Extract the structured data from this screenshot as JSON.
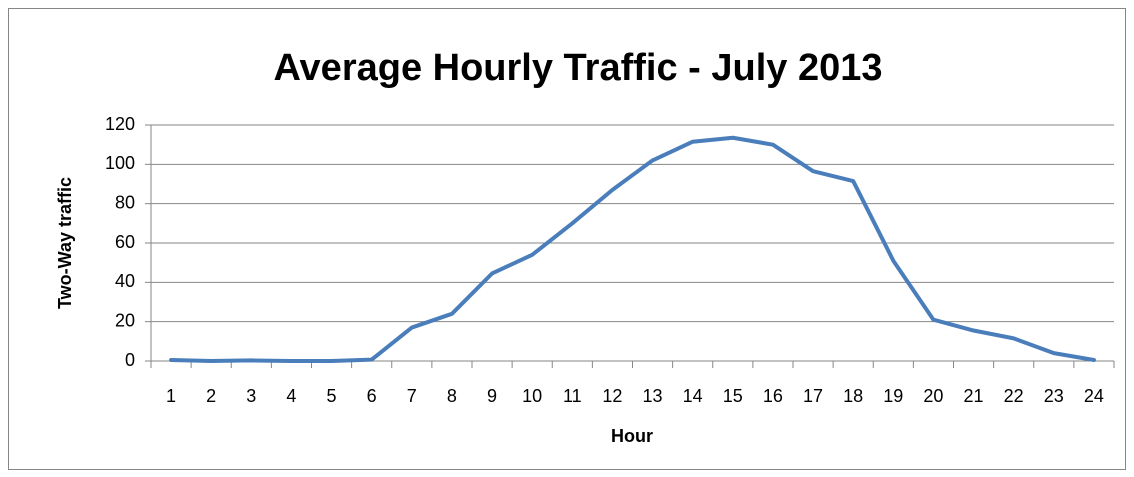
{
  "chart_data": {
    "type": "line",
    "title": "Average Hourly Traffic - July 2013",
    "x_label": "Hour",
    "y_label": "Two-Way traffic",
    "categories": [
      "1",
      "2",
      "3",
      "4",
      "5",
      "6",
      "7",
      "8",
      "9",
      "10",
      "11",
      "12",
      "13",
      "14",
      "15",
      "16",
      "17",
      "18",
      "19",
      "20",
      "21",
      "22",
      "23",
      "24"
    ],
    "series": [
      {
        "name": "Two-Way traffic",
        "color": "#4a7ebb",
        "values": [
          0.5,
          0,
          0.3,
          0,
          0,
          0.7,
          17,
          24,
          44.5,
          54,
          70,
          87,
          102,
          111.5,
          113.5,
          110,
          96.5,
          91.5,
          51,
          21,
          15.5,
          11.5,
          4,
          0.5
        ]
      }
    ],
    "ylim": [
      0,
      120
    ],
    "yticks": [
      0,
      20,
      40,
      60,
      80,
      100,
      120
    ],
    "grid": true
  }
}
